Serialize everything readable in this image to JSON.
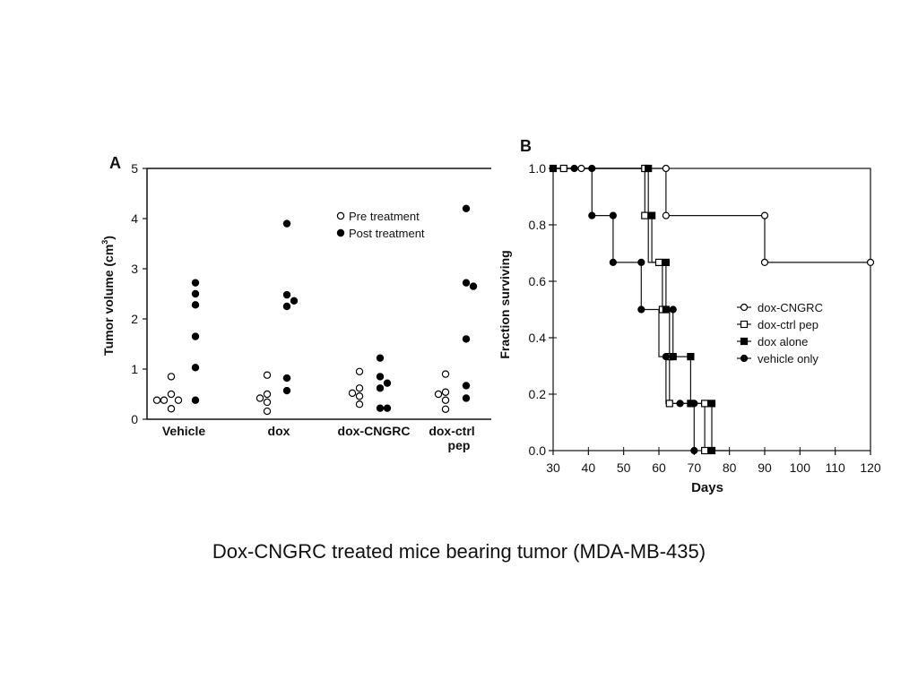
{
  "caption": "Dox-CNGRC treated mice bearing tumor (MDA-MB-435)",
  "chart_data": [
    {
      "panel_label": "A",
      "type": "scatter",
      "ylabel_parts": [
        "Tumor volume (cm",
        "3",
        ")"
      ],
      "ylim": [
        0,
        5
      ],
      "yticks": [
        "0",
        "1",
        "2",
        "3",
        "4",
        "5"
      ],
      "categories": [
        {
          "lines": [
            "Vehicle"
          ]
        },
        {
          "lines": [
            "dox"
          ]
        },
        {
          "lines": [
            "dox-CNGRC"
          ]
        },
        {
          "lines": [
            "dox-ctrl",
            "pep"
          ]
        }
      ],
      "legend": [
        {
          "name": "Pre treatment",
          "marker": "open-circle"
        },
        {
          "name": "Post treatment",
          "marker": "filled-circle"
        }
      ],
      "legend_position": "top-right",
      "series": [
        {
          "name": "Pre treatment",
          "marker": "open-circle",
          "points": [
            {
              "group": 0,
              "offset": -2,
              "value": 0.38
            },
            {
              "group": 0,
              "offset": -1,
              "value": 0.38
            },
            {
              "group": 0,
              "offset": 0,
              "value": 0.5
            },
            {
              "group": 0,
              "offset": 1,
              "value": 0.38
            },
            {
              "group": 0,
              "offset": 0,
              "value": 0.21
            },
            {
              "group": 0,
              "offset": 0,
              "value": 0.85
            },
            {
              "group": 1,
              "offset": -1,
              "value": 0.42
            },
            {
              "group": 1,
              "offset": 0,
              "value": 0.5
            },
            {
              "group": 1,
              "offset": 0,
              "value": 0.34
            },
            {
              "group": 1,
              "offset": 0,
              "value": 0.16
            },
            {
              "group": 1,
              "offset": 0,
              "value": 0.88
            },
            {
              "group": 2,
              "offset": -1,
              "value": 0.52
            },
            {
              "group": 2,
              "offset": 0,
              "value": 0.62
            },
            {
              "group": 2,
              "offset": 0,
              "value": 0.46
            },
            {
              "group": 2,
              "offset": 0,
              "value": 0.3
            },
            {
              "group": 2,
              "offset": 0,
              "value": 0.95
            },
            {
              "group": 3,
              "offset": -1,
              "value": 0.5
            },
            {
              "group": 3,
              "offset": 0,
              "value": 0.54
            },
            {
              "group": 3,
              "offset": 0,
              "value": 0.38
            },
            {
              "group": 3,
              "offset": 0,
              "value": 0.2
            },
            {
              "group": 3,
              "offset": 0,
              "value": 0.9
            }
          ]
        },
        {
          "name": "Post treatment",
          "marker": "filled-circle",
          "points": [
            {
              "group": 0,
              "offset": 0,
              "value": 2.72
            },
            {
              "group": 0,
              "offset": 0,
              "value": 2.5
            },
            {
              "group": 0,
              "offset": 0,
              "value": 2.28
            },
            {
              "group": 0,
              "offset": 0,
              "value": 1.65
            },
            {
              "group": 0,
              "offset": 0,
              "value": 1.03
            },
            {
              "group": 0,
              "offset": 0,
              "value": 0.38
            },
            {
              "group": 1,
              "offset": 0,
              "value": 3.9
            },
            {
              "group": 1,
              "offset": 0,
              "value": 2.48
            },
            {
              "group": 1,
              "offset": 0,
              "value": 2.25
            },
            {
              "group": 1,
              "offset": 1,
              "value": 2.36
            },
            {
              "group": 1,
              "offset": 0,
              "value": 0.82
            },
            {
              "group": 1,
              "offset": 0,
              "value": 0.57
            },
            {
              "group": 2,
              "offset": 0,
              "value": 1.22
            },
            {
              "group": 2,
              "offset": 0,
              "value": 0.85
            },
            {
              "group": 2,
              "offset": 1,
              "value": 0.72
            },
            {
              "group": 2,
              "offset": 0,
              "value": 0.62
            },
            {
              "group": 2,
              "offset": 0,
              "value": 0.22
            },
            {
              "group": 2,
              "offset": 1,
              "value": 0.22
            },
            {
              "group": 3,
              "offset": 0,
              "value": 4.2
            },
            {
              "group": 3,
              "offset": 0,
              "value": 2.72
            },
            {
              "group": 3,
              "offset": 1,
              "value": 2.65
            },
            {
              "group": 3,
              "offset": 0,
              "value": 1.6
            },
            {
              "group": 3,
              "offset": 0,
              "value": 0.67
            },
            {
              "group": 3,
              "offset": 0,
              "value": 0.42
            }
          ]
        }
      ]
    },
    {
      "panel_label": "B",
      "type": "line",
      "xlabel": "Days",
      "ylabel": "Fraction surviving",
      "xlim": [
        30,
        120
      ],
      "ylim": [
        0,
        1
      ],
      "xticks": [
        "30",
        "40",
        "50",
        "60",
        "70",
        "80",
        "90",
        "100",
        "110",
        "120"
      ],
      "yticks": [
        "0.0",
        "0.2",
        "0.4",
        "0.6",
        "0.8",
        "1.0"
      ],
      "legend_position": "right-middle",
      "series": [
        {
          "name": "dox-CNGRC",
          "marker": "open-circle",
          "step": [
            [
              30,
              1.0
            ],
            [
              62,
              1.0
            ],
            [
              62,
              0.833
            ],
            [
              90,
              0.833
            ],
            [
              90,
              0.667
            ],
            [
              120,
              0.667
            ]
          ],
          "markers": [
            [
              33,
              1.0
            ],
            [
              38,
              1.0
            ],
            [
              62,
              1.0
            ],
            [
              62,
              0.833
            ],
            [
              90,
              0.833
            ],
            [
              90,
              0.667
            ],
            [
              120,
              0.667
            ]
          ]
        },
        {
          "name": "dox-ctrl pep",
          "marker": "open-square",
          "step": [
            [
              30,
              1.0
            ],
            [
              56,
              1.0
            ],
            [
              56,
              0.833
            ],
            [
              57,
              0.833
            ],
            [
              57,
              0.667
            ],
            [
              61,
              0.667
            ],
            [
              61,
              0.5
            ],
            [
              63,
              0.5
            ],
            [
              63,
              0.333
            ],
            [
              63,
              0.167
            ],
            [
              73,
              0.167
            ],
            [
              73,
              0.0
            ],
            [
              75,
              0.0
            ]
          ],
          "markers": [
            [
              33,
              1.0
            ],
            [
              56,
              1.0
            ],
            [
              56,
              0.833
            ],
            [
              60,
              0.667
            ],
            [
              61,
              0.5
            ],
            [
              63,
              0.333
            ],
            [
              63,
              0.167
            ],
            [
              73,
              0.167
            ],
            [
              73,
              0.0
            ]
          ]
        },
        {
          "name": "dox alone",
          "marker": "filled-square",
          "step": [
            [
              30,
              1.0
            ],
            [
              57,
              1.0
            ],
            [
              57,
              0.833
            ],
            [
              58,
              0.833
            ],
            [
              58,
              0.667
            ],
            [
              62,
              0.667
            ],
            [
              62,
              0.5
            ],
            [
              64,
              0.5
            ],
            [
              64,
              0.333
            ],
            [
              69,
              0.333
            ],
            [
              69,
              0.167
            ],
            [
              75,
              0.167
            ],
            [
              75,
              0.0
            ],
            [
              80,
              0.0
            ]
          ],
          "markers": [
            [
              30,
              1.0
            ],
            [
              57,
              1.0
            ],
            [
              58,
              0.833
            ],
            [
              62,
              0.667
            ],
            [
              62,
              0.5
            ],
            [
              64,
              0.333
            ],
            [
              69,
              0.333
            ],
            [
              69,
              0.167
            ],
            [
              75,
              0.167
            ],
            [
              75,
              0.0
            ]
          ]
        },
        {
          "name": "vehicle only",
          "marker": "filled-circle",
          "step": [
            [
              30,
              1.0
            ],
            [
              41,
              1.0
            ],
            [
              41,
              0.833
            ],
            [
              47,
              0.833
            ],
            [
              47,
              0.667
            ],
            [
              55,
              0.667
            ],
            [
              55,
              0.5
            ],
            [
              60,
              0.5
            ],
            [
              60,
              0.333
            ],
            [
              62,
              0.333
            ],
            [
              62,
              0.167
            ],
            [
              70,
              0.167
            ],
            [
              70,
              0.0
            ]
          ],
          "markers": [
            [
              36,
              1.0
            ],
            [
              41,
              1.0
            ],
            [
              41,
              0.833
            ],
            [
              47,
              0.833
            ],
            [
              47,
              0.667
            ],
            [
              55,
              0.667
            ],
            [
              55,
              0.5
            ],
            [
              64,
              0.5
            ],
            [
              62,
              0.333
            ],
            [
              66,
              0.167
            ],
            [
              70,
              0.167
            ],
            [
              70,
              0.0
            ]
          ]
        }
      ]
    }
  ]
}
